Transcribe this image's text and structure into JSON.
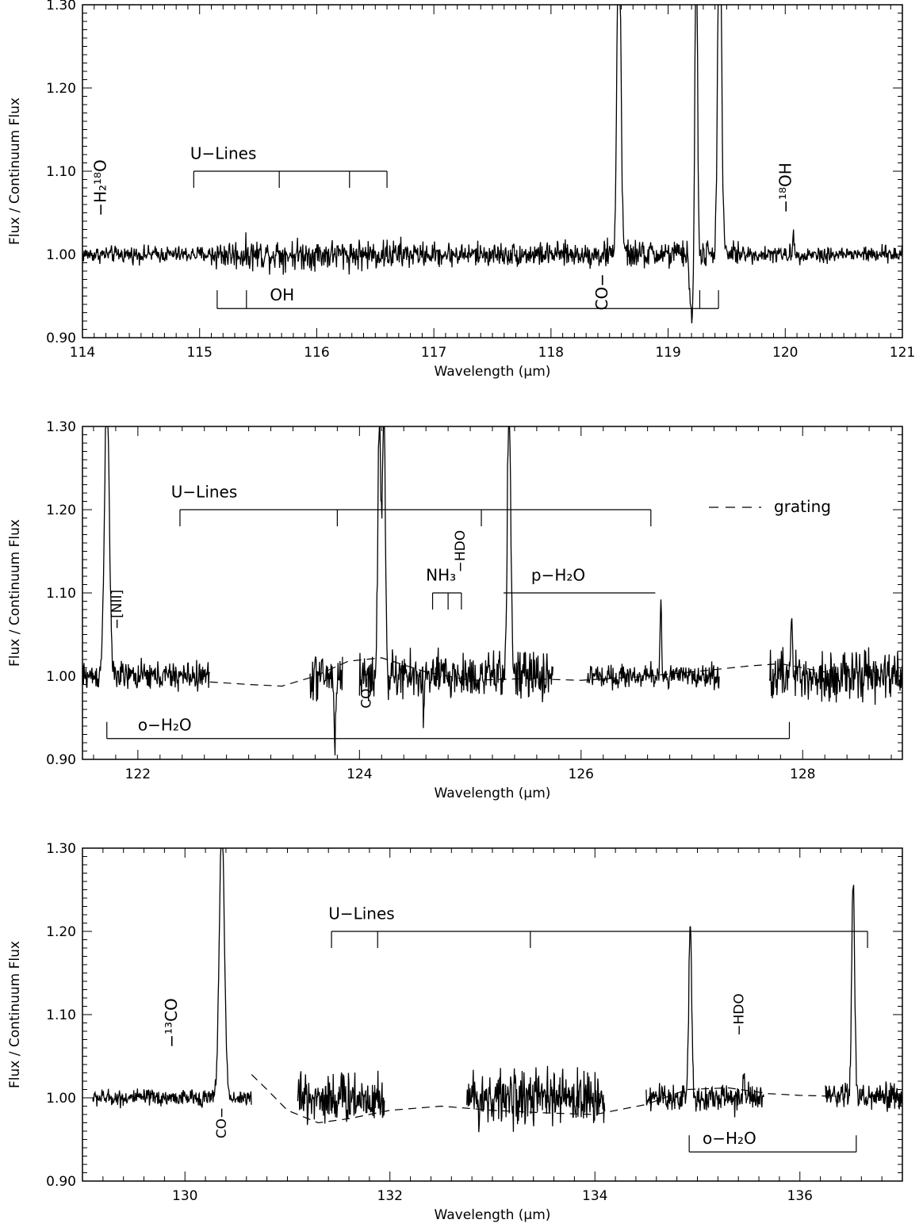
{
  "chart_data": [
    {
      "type": "line",
      "title": "",
      "xlabel": "Wavelength (μm)",
      "ylabel": "Flux / Continuum Flux",
      "xlim": [
        114,
        121
      ],
      "ylim": [
        0.9,
        1.3
      ],
      "xticks": [
        114,
        115,
        116,
        117,
        118,
        119,
        120,
        121
      ],
      "yticks": [
        0.9,
        1.0,
        1.1,
        1.2,
        1.3
      ],
      "ytick_labels": [
        "0.90",
        "1.00",
        "1.10",
        "1.20",
        "1.30"
      ],
      "segments": [
        [
          114.0,
          121.0
        ]
      ],
      "noise": [
        {
          "from": 114.0,
          "to": 115.1,
          "amp": 0.007
        },
        {
          "from": 115.1,
          "to": 116.8,
          "amp": 0.013
        },
        {
          "from": 116.8,
          "to": 118.4,
          "amp": 0.01
        },
        {
          "from": 118.4,
          "to": 119.6,
          "amp": 0.012
        },
        {
          "from": 119.6,
          "to": 121.0,
          "amp": 0.007
        }
      ],
      "features": [
        {
          "x": 118.58,
          "height": 0.45,
          "width": 0.022
        },
        {
          "x": 119.2,
          "height": -0.075,
          "width": 0.02
        },
        {
          "x": 119.24,
          "height": 0.45,
          "width": 0.014
        },
        {
          "x": 119.44,
          "height": 0.45,
          "width": 0.022
        },
        {
          "x": 115.67,
          "height": -0.025,
          "width": 0.006
        },
        {
          "x": 115.67,
          "height": 0.035,
          "width": 0.006
        },
        {
          "x": 120.07,
          "height": 0.025,
          "width": 0.008
        }
      ],
      "series": [],
      "annotations": [
        {
          "text": "U−Lines",
          "x": 114.92,
          "y": 1.115,
          "type": "text"
        },
        {
          "type": "ladder",
          "y": 1.1,
          "x": [
            114.95,
            115.68,
            116.28,
            116.6
          ],
          "tick": -0.02
        },
        {
          "text": "OH",
          "x": 115.6,
          "y": 0.945,
          "type": "text"
        },
        {
          "type": "ladder",
          "y": 0.935,
          "x": [
            115.15,
            115.4,
            119.27,
            119.43
          ],
          "tick": 0.022
        },
        {
          "text": "−H₂¹⁸O",
          "x": 114.2,
          "y": 1.08,
          "type": "vtext"
        },
        {
          "text": "CO−",
          "x": 118.48,
          "y": 0.955,
          "type": "vtext"
        },
        {
          "text": "−¹⁸OH",
          "x": 120.05,
          "y": 1.08,
          "type": "vtext"
        }
      ],
      "legend": null
    },
    {
      "type": "line",
      "title": "",
      "xlabel": "Wavelength (μm)",
      "ylabel": "Flux / Continuum Flux",
      "xlim": [
        121.5,
        128.9
      ],
      "ylim": [
        0.9,
        1.3
      ],
      "xticks": [
        122,
        124,
        126,
        128
      ],
      "yticks": [
        0.9,
        1.0,
        1.1,
        1.2,
        1.3
      ],
      "ytick_labels": [
        "0.90",
        "1.00",
        "1.10",
        "1.20",
        "1.30"
      ],
      "segments": [
        [
          121.5,
          122.65
        ],
        [
          123.55,
          123.85
        ],
        [
          124.0,
          125.75
        ],
        [
          126.05,
          127.25
        ],
        [
          127.7,
          128.9
        ]
      ],
      "noise": [
        {
          "from": 121.5,
          "to": 122.65,
          "amp": 0.012
        },
        {
          "from": 123.55,
          "to": 123.85,
          "amp": 0.02
        },
        {
          "from": 124.0,
          "to": 125.75,
          "amp": 0.02
        },
        {
          "from": 126.05,
          "to": 127.25,
          "amp": 0.01
        },
        {
          "from": 127.7,
          "to": 128.9,
          "amp": 0.02
        }
      ],
      "features": [
        {
          "x": 121.72,
          "height": 0.35,
          "width": 0.03
        },
        {
          "x": 123.78,
          "height": -0.075,
          "width": 0.012
        },
        {
          "x": 123.86,
          "height": 0.05,
          "width": 0.012
        },
        {
          "x": 124.18,
          "height": 0.33,
          "width": 0.018
        },
        {
          "x": 124.22,
          "height": 0.33,
          "width": 0.018
        },
        {
          "x": 125.35,
          "height": 0.33,
          "width": 0.022
        },
        {
          "x": 126.72,
          "height": 0.09,
          "width": 0.01
        },
        {
          "x": 127.9,
          "height": 0.07,
          "width": 0.012
        },
        {
          "x": 124.58,
          "height": -0.05,
          "width": 0.008
        }
      ],
      "series": [
        {
          "name": "grating",
          "style": "dashed",
          "x": [
            122.65,
            123.0,
            123.3,
            123.6,
            123.9,
            124.2,
            124.6,
            125.0,
            125.5,
            126.0,
            126.5,
            127.0,
            127.5,
            127.8,
            128.2
          ],
          "y": [
            0.993,
            0.99,
            0.988,
            1.0,
            1.018,
            1.022,
            1.005,
            0.995,
            0.997,
            0.995,
            0.999,
            1.005,
            1.012,
            1.015,
            1.005
          ]
        }
      ],
      "annotations": [
        {
          "text": "U−Lines",
          "x": 122.3,
          "y": 1.215,
          "type": "text"
        },
        {
          "type": "ladder",
          "y": 1.2,
          "x": [
            122.38,
            123.8,
            125.1,
            126.63
          ],
          "tick": -0.02
        },
        {
          "text": "−HDO",
          "x": 124.95,
          "y": 1.15,
          "type": "vtext-small"
        },
        {
          "text": "NH₃",
          "x": 124.6,
          "y": 1.115,
          "type": "text"
        },
        {
          "type": "ladder",
          "y": 1.1,
          "x": [
            124.66,
            124.8,
            124.92
          ],
          "tick": -0.02
        },
        {
          "text": "p−H₂O",
          "x": 125.55,
          "y": 1.115,
          "type": "text"
        },
        {
          "type": "bracket-left",
          "y": 1.1,
          "x": [
            125.3,
            126.67
          ]
        },
        {
          "text": "−[NII]",
          "x": 121.85,
          "y": 1.08,
          "type": "vtext-small"
        },
        {
          "text": "CO−",
          "x": 124.1,
          "y": 0.98,
          "type": "vtext-small"
        },
        {
          "text": "o−H₂O",
          "x": 122.0,
          "y": 0.935,
          "type": "text"
        },
        {
          "type": "ladder",
          "y": 0.925,
          "x": [
            121.72,
            127.88
          ],
          "tick": 0.02
        }
      ],
      "legend": {
        "label": "grating",
        "position": "top-right"
      }
    },
    {
      "type": "line",
      "title": "",
      "xlabel": "Wavelength (μm)",
      "ylabel": "Flux / Continuum Flux",
      "xlim": [
        129.0,
        137.0
      ],
      "ylim": [
        0.9,
        1.3
      ],
      "xticks": [
        130,
        132,
        134,
        136
      ],
      "yticks": [
        0.9,
        1.0,
        1.1,
        1.2,
        1.3
      ],
      "ytick_labels": [
        "0.90",
        "1.00",
        "1.10",
        "1.20",
        "1.30"
      ],
      "segments": [
        [
          129.1,
          130.65
        ],
        [
          131.1,
          131.95
        ],
        [
          132.75,
          134.1
        ],
        [
          134.5,
          135.65
        ],
        [
          136.25,
          137.0
        ]
      ],
      "noise": [
        {
          "from": 129.1,
          "to": 130.65,
          "amp": 0.007
        },
        {
          "from": 131.1,
          "to": 131.95,
          "amp": 0.022
        },
        {
          "from": 132.75,
          "to": 134.1,
          "amp": 0.022
        },
        {
          "from": 134.5,
          "to": 135.65,
          "amp": 0.012
        },
        {
          "from": 136.25,
          "to": 137.0,
          "amp": 0.012
        }
      ],
      "features": [
        {
          "x": 130.36,
          "height": 0.33,
          "width": 0.035
        },
        {
          "x": 134.93,
          "height": 0.21,
          "width": 0.02
        },
        {
          "x": 135.45,
          "height": 0.035,
          "width": 0.01
        },
        {
          "x": 136.52,
          "height": 0.27,
          "width": 0.02
        }
      ],
      "series": [
        {
          "name": "grating",
          "style": "dashed",
          "x": [
            130.65,
            130.8,
            131.0,
            131.3,
            131.6,
            132.0,
            132.5,
            133.0,
            133.5,
            134.0,
            134.5,
            134.9,
            135.3,
            135.7,
            136.0,
            136.3
          ],
          "y": [
            1.028,
            1.01,
            0.985,
            0.97,
            0.975,
            0.985,
            0.99,
            0.985,
            0.982,
            0.98,
            0.992,
            1.01,
            1.012,
            1.005,
            1.003,
            1.002
          ]
        }
      ],
      "annotations": [
        {
          "text": "U−Lines",
          "x": 131.4,
          "y": 1.215,
          "type": "text"
        },
        {
          "type": "ladder",
          "y": 1.2,
          "x": [
            131.43,
            131.88,
            133.37,
            136.66
          ],
          "tick": -0.02
        },
        {
          "text": "−¹³CO",
          "x": 129.92,
          "y": 1.09,
          "type": "vtext"
        },
        {
          "text": "CO−",
          "x": 130.4,
          "y": 0.97,
          "type": "vtext-small"
        },
        {
          "text": "−HDO",
          "x": 135.45,
          "y": 1.1,
          "type": "vtext-small"
        },
        {
          "text": "o−H₂O",
          "x": 135.05,
          "y": 0.945,
          "type": "text"
        },
        {
          "type": "ladder",
          "y": 0.935,
          "x": [
            134.92,
            136.55
          ],
          "tick": 0.02
        }
      ],
      "legend": null
    }
  ]
}
